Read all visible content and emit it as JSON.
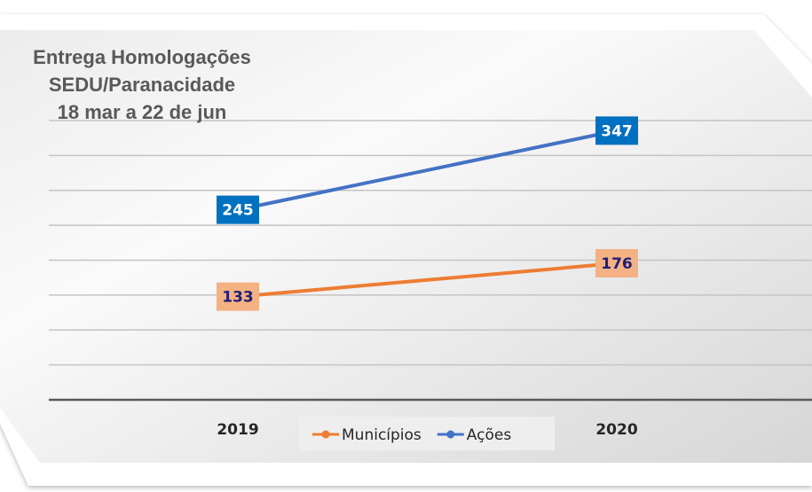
{
  "chart_data": {
    "type": "line",
    "title": [
      "Entrega Homologações",
      "SEDU/Paranacidade",
      "18 mar a 22 de jun"
    ],
    "categories": [
      "2019",
      "2020"
    ],
    "series": [
      {
        "name": "Municípios",
        "values": [
          133,
          176
        ],
        "color": "#ed7d31",
        "label_bg": "#f4b183",
        "label_color": "#1f1f7a"
      },
      {
        "name": "Ações",
        "values": [
          245,
          347
        ],
        "color": "#4472c4",
        "label_bg": "#0070c0",
        "label_color": "#ffffff"
      }
    ],
    "ylim": [
      0,
      360
    ],
    "ystep": 45,
    "grid": true,
    "legend": "bottom-center",
    "data_labels": true
  }
}
